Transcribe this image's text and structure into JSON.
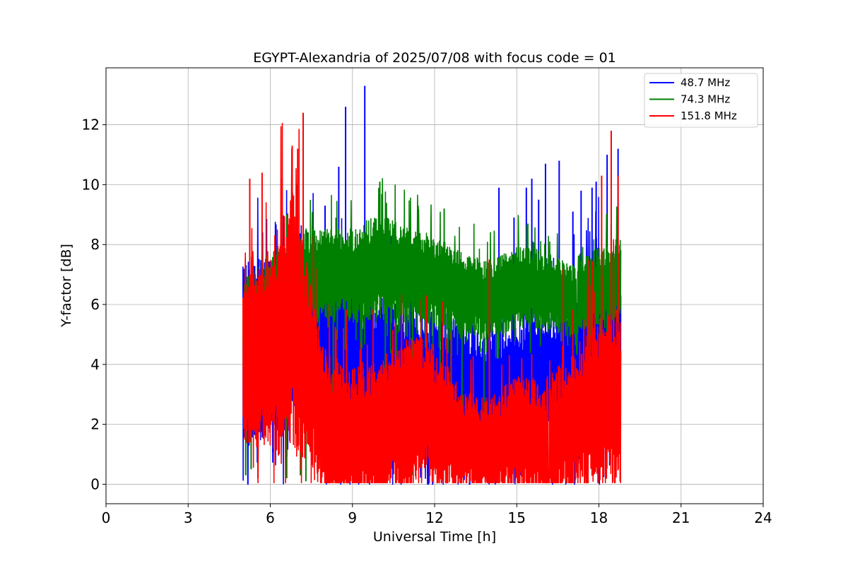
{
  "chart_data": {
    "type": "line",
    "title": "EGYPT-Alexandria of 2025/07/08 with focus code = 01",
    "xlabel": "Universal Time [h]",
    "ylabel": "Y-factor [dB]",
    "xlim": [
      0,
      24
    ],
    "ylim": [
      -0.65,
      13.9
    ],
    "xticks": [
      "0",
      "3",
      "6",
      "9",
      "12",
      "15",
      "18",
      "21",
      "24"
    ],
    "yticks": [
      "0",
      "2",
      "4",
      "6",
      "8",
      "10",
      "12"
    ],
    "grid": true,
    "legend_position": "top-right",
    "series": [
      {
        "name": "  48.7 MHz",
        "color": "#0000ff",
        "x_range": [
          5.0,
          18.8
        ],
        "base": [
          [
            5,
            4.4
          ],
          [
            6,
            4.6
          ],
          [
            7,
            5.0
          ],
          [
            8,
            4.4
          ],
          [
            9,
            3.8
          ],
          [
            10,
            3.8
          ],
          [
            11,
            3.4
          ],
          [
            12,
            3.3
          ],
          [
            13,
            3.0
          ],
          [
            14,
            3.0
          ],
          [
            15,
            3.3
          ],
          [
            16,
            3.3
          ],
          [
            17,
            3.8
          ],
          [
            18,
            4.3
          ],
          [
            18.8,
            4.4
          ]
        ],
        "amplitude": [
          [
            5,
            3.2
          ],
          [
            6,
            3.0
          ],
          [
            7,
            3.0
          ],
          [
            8,
            3.0
          ],
          [
            9,
            3.0
          ],
          [
            10,
            2.8
          ],
          [
            11,
            2.8
          ],
          [
            12,
            2.6
          ],
          [
            13,
            2.4
          ],
          [
            14,
            2.4
          ],
          [
            15,
            2.3
          ],
          [
            16,
            2.2
          ],
          [
            17,
            2.5
          ],
          [
            18,
            3.0
          ],
          [
            18.8,
            3.0
          ]
        ],
        "spikes": [
          [
            8.75,
            12.6
          ],
          [
            9.45,
            13.3
          ],
          [
            8.0,
            9.3
          ],
          [
            8.5,
            10.6
          ],
          [
            10.0,
            10.0
          ],
          [
            14.35,
            9.9
          ],
          [
            14.9,
            8.9
          ],
          [
            15.35,
            9.9
          ],
          [
            15.55,
            10.2
          ],
          [
            15.8,
            9.5
          ],
          [
            16.05,
            10.7
          ],
          [
            16.55,
            10.8
          ],
          [
            17.05,
            9.1
          ],
          [
            17.35,
            9.8
          ],
          [
            17.75,
            9.9
          ],
          [
            17.9,
            10.1
          ],
          [
            18.3,
            11.0
          ],
          [
            18.7,
            11.2
          ]
        ],
        "lower_min": 0.0
      },
      {
        "name": "  74.3 MHz",
        "color": "#008000",
        "x_range": [
          5.0,
          18.8
        ],
        "base": [
          [
            5,
            4.8
          ],
          [
            6,
            6.0
          ],
          [
            7,
            6.8
          ],
          [
            8,
            7.0
          ],
          [
            9,
            7.0
          ],
          [
            10,
            7.2
          ],
          [
            11,
            7.0
          ],
          [
            12,
            6.8
          ],
          [
            13,
            6.4
          ],
          [
            14,
            6.1
          ],
          [
            15,
            6.6
          ],
          [
            16,
            6.5
          ],
          [
            17,
            6.1
          ],
          [
            18,
            6.6
          ],
          [
            18.8,
            6.8
          ]
        ],
        "amplitude": [
          [
            5,
            2.0
          ],
          [
            6,
            1.8
          ],
          [
            7,
            1.8
          ],
          [
            8,
            1.5
          ],
          [
            9,
            1.6
          ],
          [
            10,
            1.8
          ],
          [
            11,
            1.6
          ],
          [
            12,
            1.5
          ],
          [
            13,
            1.4
          ],
          [
            14,
            1.3
          ],
          [
            15,
            1.4
          ],
          [
            16,
            1.3
          ],
          [
            17,
            1.2
          ],
          [
            18,
            1.4
          ],
          [
            18.8,
            1.4
          ]
        ],
        "spikes": [
          [
            10.0,
            10.1
          ],
          [
            11.4,
            9.3
          ],
          [
            12.35,
            9.2
          ],
          [
            6.6,
            9.0
          ],
          [
            8.4,
            8.9
          ]
        ],
        "dropouts": [
          [
            5.1,
            0.3
          ],
          [
            5.3,
            0.5
          ],
          [
            5.55,
            0.2
          ],
          [
            6.6,
            0.2
          ],
          [
            7.1,
            0.3
          ],
          [
            7.3,
            0.1
          ],
          [
            8.3,
            0.2
          ],
          [
            9.3,
            0.05
          ],
          [
            10.2,
            0.5
          ],
          [
            10.6,
            0.4
          ],
          [
            11.2,
            0.3
          ],
          [
            11.5,
            0.6
          ],
          [
            12.2,
            0.4
          ],
          [
            12.6,
            0.7
          ],
          [
            13.0,
            0.8
          ],
          [
            13.8,
            0.9
          ]
        ],
        "lower_min": 0.0
      },
      {
        "name": "  151.8 MHz",
        "color": "#ff0000",
        "x_range": [
          5.0,
          18.8
        ],
        "base": [
          [
            5,
            4.0
          ],
          [
            6,
            4.4
          ],
          [
            6.8,
            5.5
          ],
          [
            7.5,
            3.5
          ],
          [
            8,
            2.0
          ],
          [
            9,
            1.6
          ],
          [
            10,
            1.8
          ],
          [
            11,
            2.3
          ],
          [
            11.5,
            2.8
          ],
          [
            12,
            2.2
          ],
          [
            13,
            1.4
          ],
          [
            14,
            1.2
          ],
          [
            15,
            1.6
          ],
          [
            16,
            1.5
          ],
          [
            17,
            2.0
          ],
          [
            18,
            2.6
          ],
          [
            18.8,
            3.0
          ]
        ],
        "amplitude": [
          [
            5,
            2.8
          ],
          [
            6,
            3.5
          ],
          [
            6.8,
            4.5
          ],
          [
            7.5,
            3.0
          ],
          [
            8,
            2.5
          ],
          [
            9,
            2.5
          ],
          [
            10,
            2.4
          ],
          [
            11,
            2.6
          ],
          [
            12,
            2.4
          ],
          [
            13,
            1.8
          ],
          [
            14,
            1.7
          ],
          [
            15,
            2.0
          ],
          [
            16,
            2.0
          ],
          [
            17,
            2.4
          ],
          [
            18,
            3.0
          ],
          [
            18.8,
            3.0
          ]
        ],
        "spikes": [
          [
            5.25,
            10.2
          ],
          [
            5.7,
            10.4
          ],
          [
            6.4,
            10.2
          ],
          [
            6.8,
            11.3
          ],
          [
            7.2,
            12.4
          ],
          [
            7.0,
            11.2
          ],
          [
            18.45,
            11.8
          ],
          [
            18.1,
            10.3
          ],
          [
            18.7,
            10.3
          ],
          [
            17.6,
            7.5
          ],
          [
            16.7,
            7.2
          ],
          [
            14.0,
            7.5
          ],
          [
            11.7,
            6.3
          ],
          [
            12.3,
            6.1
          ]
        ],
        "lower_min": 0.05
      }
    ]
  }
}
